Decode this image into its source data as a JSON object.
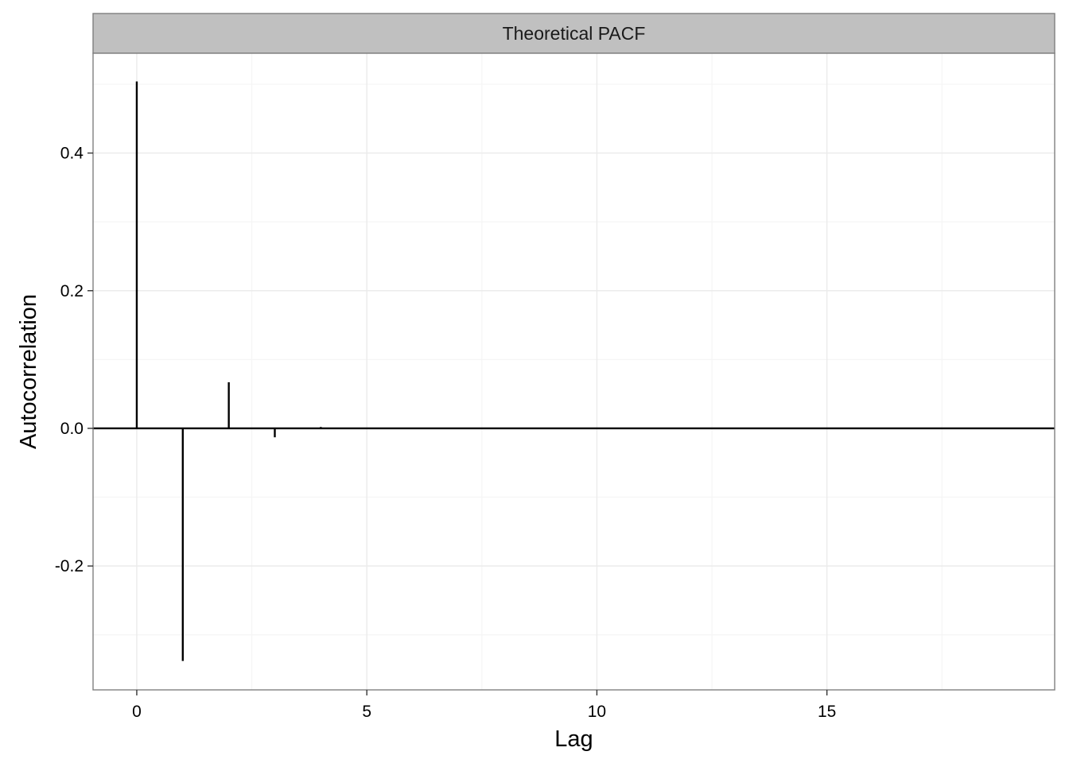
{
  "chart_data": {
    "type": "bar",
    "facet_label": "Theoretical PACF",
    "xlabel": "Lag",
    "ylabel": "Autocorrelation",
    "x": [
      0,
      1,
      2,
      3,
      4
    ],
    "values": [
      0.504,
      -0.338,
      0.067,
      -0.013,
      0.002
    ],
    "xlim": [
      -0.95,
      19.95
    ],
    "ylim": [
      -0.38,
      0.545
    ],
    "x_ticks": [
      0,
      5,
      10,
      15
    ],
    "x_tick_labels": [
      "0",
      "5",
      "10",
      "15"
    ],
    "y_ticks": [
      -0.2,
      0.0,
      0.2,
      0.4
    ],
    "y_tick_labels": [
      "-0.2",
      "0.0",
      "0.2",
      "0.4"
    ],
    "grid": true,
    "hline": 0,
    "colors": {
      "bar": "#000000",
      "strip": "#c0c0c0",
      "grid": "#ebebeb",
      "border": "#7f7f7f"
    }
  }
}
